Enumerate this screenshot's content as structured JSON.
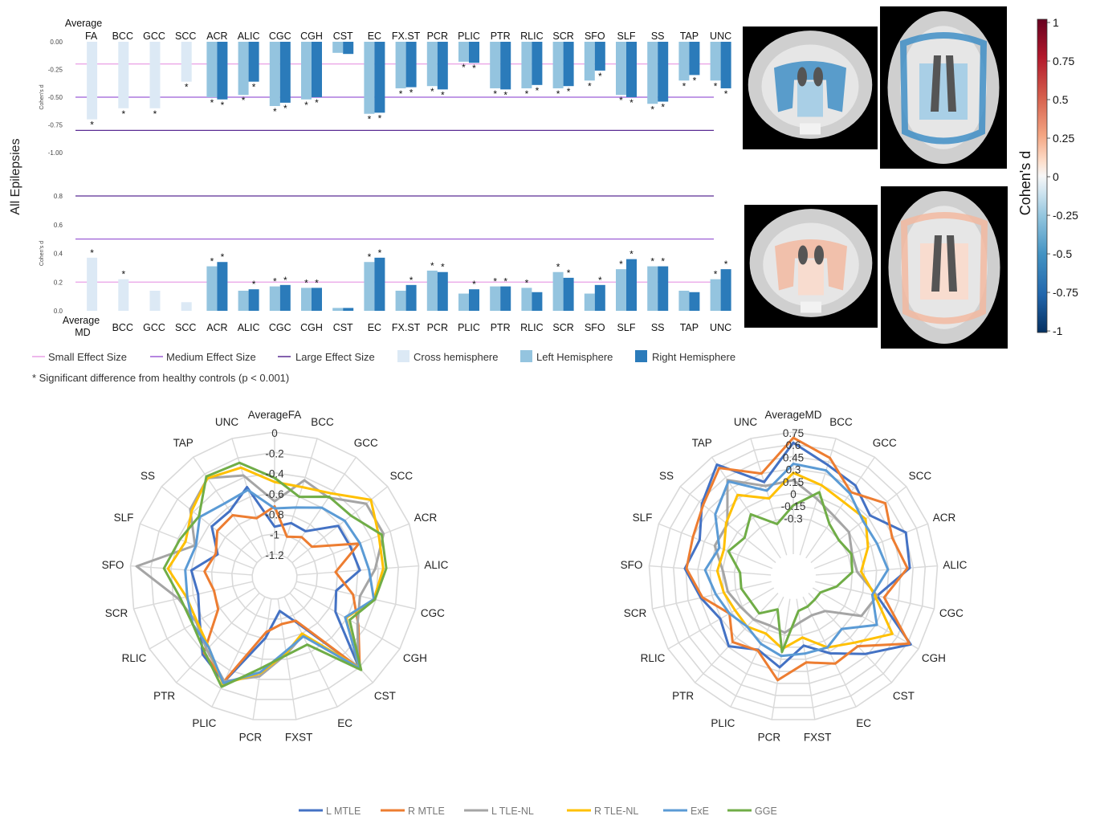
{
  "figure": {
    "row_label": "All Epilepsies",
    "footnote": "* Significant difference from healthy controls (p < 0.001)",
    "colorbar": {
      "label": "Cohen's d",
      "ticks": [
        "1",
        "0.75",
        "0.5",
        "0.25",
        "0",
        "-0.25",
        "-0.5",
        "-0.75",
        "-1"
      ]
    },
    "legend": {
      "small": "Small Effect Size",
      "medium": "Medium Effect Size",
      "large": "Large Effect Size",
      "cross": "Cross hemisphere",
      "left": "Left Hemisphere",
      "right": "Right Hemisphere"
    },
    "colors": {
      "cross": "#dce9f5",
      "left": "#94c4df",
      "right": "#2b7bba",
      "small": "#e9a0e6",
      "medium": "#9c5ed6",
      "large": "#5b2c93"
    }
  },
  "chart_data": [
    {
      "type": "bar",
      "title": "",
      "ylabel": "Cohen's d",
      "first_category_label": [
        "Average",
        "FA"
      ],
      "categories": [
        "FA",
        "BCC",
        "GCC",
        "SCC",
        "ACR",
        "ALIC",
        "CGC",
        "CGH",
        "CST",
        "EC",
        "FX.ST",
        "PCR",
        "PLIC",
        "PTR",
        "RLIC",
        "SCR",
        "SFO",
        "SLF",
        "SS",
        "TAP",
        "UNC"
      ],
      "yticks": [
        "0.00",
        "-0.25",
        "-0.50",
        "-0.75",
        "-1.00"
      ],
      "ylim": [
        -1.0,
        0.0
      ],
      "thresholds": {
        "small": -0.2,
        "medium": -0.5,
        "large": -0.8
      },
      "cross_values": [
        -0.7,
        -0.6,
        -0.6,
        -0.36,
        null,
        null,
        null,
        null,
        null,
        null,
        null,
        null,
        null,
        null,
        null,
        null,
        null,
        null,
        null,
        null,
        null
      ],
      "left_values": [
        null,
        null,
        null,
        null,
        -0.5,
        -0.48,
        -0.58,
        -0.52,
        -0.1,
        -0.65,
        -0.42,
        -0.4,
        -0.18,
        -0.42,
        -0.42,
        -0.42,
        -0.35,
        -0.48,
        -0.56,
        -0.35,
        -0.35
      ],
      "right_values": [
        null,
        null,
        null,
        null,
        -0.52,
        -0.36,
        -0.55,
        -0.5,
        -0.11,
        -0.64,
        -0.41,
        -0.43,
        -0.19,
        -0.43,
        -0.39,
        -0.4,
        -0.26,
        -0.5,
        -0.54,
        -0.3,
        -0.42
      ],
      "sig_cross": [
        true,
        true,
        true,
        true,
        false,
        false,
        false,
        false,
        false,
        false,
        false,
        false,
        false,
        false,
        false,
        false,
        false,
        false,
        false,
        false,
        false
      ],
      "sig_left": [
        false,
        false,
        false,
        false,
        true,
        true,
        true,
        true,
        false,
        true,
        true,
        true,
        true,
        true,
        true,
        true,
        true,
        true,
        true,
        true,
        true
      ],
      "sig_right": [
        false,
        false,
        false,
        false,
        true,
        true,
        true,
        true,
        false,
        true,
        true,
        true,
        true,
        true,
        true,
        true,
        true,
        true,
        true,
        true,
        true
      ]
    },
    {
      "type": "bar",
      "title": "",
      "ylabel": "Cohen's d",
      "first_category_label": [
        "Average",
        "MD"
      ],
      "categories": [
        "MD",
        "BCC",
        "GCC",
        "SCC",
        "ACR",
        "ALIC",
        "CGC",
        "CGH",
        "CST",
        "EC",
        "FX.ST",
        "PCR",
        "PLIC",
        "PTR",
        "RLIC",
        "SCR",
        "SFO",
        "SLF",
        "SS",
        "TAP",
        "UNC"
      ],
      "yticks": [
        "0.0",
        "0.2",
        "0.4",
        "0.6",
        "0.8"
      ],
      "ylim": [
        0.0,
        0.8
      ],
      "thresholds": {
        "small": 0.2,
        "medium": 0.5,
        "large": 0.8
      },
      "cross_values": [
        0.37,
        0.22,
        0.14,
        0.06,
        null,
        null,
        null,
        null,
        null,
        null,
        null,
        null,
        null,
        null,
        null,
        null,
        null,
        null,
        null,
        null,
        null
      ],
      "left_values": [
        null,
        null,
        null,
        null,
        0.31,
        0.14,
        0.17,
        0.16,
        0.02,
        0.34,
        0.14,
        0.28,
        0.12,
        0.17,
        0.16,
        0.27,
        0.12,
        0.29,
        0.31,
        0.14,
        0.22
      ],
      "right_values": [
        null,
        null,
        null,
        null,
        0.34,
        0.15,
        0.18,
        0.16,
        0.02,
        0.37,
        0.18,
        0.27,
        0.15,
        0.17,
        0.13,
        0.23,
        0.18,
        0.36,
        0.31,
        0.13,
        0.29
      ],
      "sig_cross": [
        true,
        true,
        false,
        false,
        false,
        false,
        false,
        false,
        false,
        false,
        false,
        false,
        false,
        false,
        false,
        false,
        false,
        false,
        false,
        false,
        false
      ],
      "sig_left": [
        false,
        false,
        false,
        false,
        true,
        false,
        true,
        true,
        false,
        true,
        false,
        true,
        false,
        true,
        true,
        true,
        false,
        true,
        true,
        false,
        true
      ],
      "sig_right": [
        false,
        false,
        false,
        false,
        true,
        true,
        true,
        true,
        false,
        true,
        true,
        true,
        true,
        true,
        false,
        true,
        true,
        true,
        true,
        false,
        true
      ]
    },
    {
      "type": "radar",
      "axes": [
        "AverageFA",
        "BCC",
        "GCC",
        "SCC",
        "ACR",
        "ALIC",
        "CGC",
        "CGH",
        "CST",
        "EC",
        "FXST",
        "PCR",
        "PLIC",
        "PTR",
        "RLIC",
        "SCR",
        "SFO",
        "SLF",
        "SS",
        "TAP",
        "UNC"
      ],
      "rticks": [
        "0",
        "-0.2",
        "-0.4",
        "-0.6",
        "-0.8",
        "-1",
        "-1.2"
      ],
      "rlim": [
        -1.2,
        0.0
      ],
      "series": [
        {
          "name": "L MTLE",
          "color": "#4472c4",
          "values": [
            -0.93,
            -0.87,
            -0.88,
            -0.62,
            -0.62,
            -0.58,
            -0.8,
            -0.73,
            -0.2,
            -0.92,
            -1.08,
            -0.81,
            -0.27,
            -0.38,
            -0.57,
            -0.65,
            -0.6,
            -0.82,
            -0.63,
            -0.64,
            -0.5
          ]
        },
        {
          "name": "R MTLE",
          "color": "#ed7d31",
          "values": [
            -0.73,
            -1.01,
            -0.95,
            -0.95,
            -0.53,
            -0.82,
            -0.63,
            -0.47,
            -0.19,
            -0.94,
            -0.95,
            -0.87,
            -0.28,
            -0.4,
            -0.78,
            -0.81,
            -0.73,
            -0.8,
            -0.7,
            -0.69,
            -0.82
          ]
        },
        {
          "name": "L TLE-NL",
          "color": "#a5a5a5",
          "values": [
            -0.68,
            -0.43,
            -0.48,
            -0.27,
            -0.27,
            -0.43,
            -0.56,
            -0.48,
            -0.21,
            -0.78,
            -0.65,
            -0.43,
            -0.28,
            -0.44,
            -0.53,
            -0.45,
            -0.06,
            -0.58,
            -0.36,
            -0.25,
            -0.38
          ]
        },
        {
          "name": "R TLE-NL",
          "color": "#ffc000",
          "values": [
            -0.49,
            -0.5,
            -0.43,
            -0.21,
            -0.32,
            -0.35,
            -0.42,
            -0.61,
            -0.2,
            -0.8,
            -0.66,
            -0.46,
            -0.25,
            -0.47,
            -0.54,
            -0.53,
            -0.37,
            -0.48,
            -0.38,
            -0.25,
            -0.3
          ]
        },
        {
          "name": "ExE",
          "color": "#5b9bd5",
          "values": [
            -0.75,
            -0.71,
            -0.6,
            -0.54,
            -0.52,
            -0.49,
            -0.42,
            -0.62,
            -0.19,
            -0.77,
            -0.68,
            -0.47,
            -0.26,
            -0.47,
            -0.49,
            -0.54,
            -0.54,
            -0.59,
            -0.48,
            -0.55,
            -0.53
          ]
        },
        {
          "name": "GGE",
          "color": "#70ad47",
          "values": [
            -0.45,
            -0.6,
            -0.47,
            -0.46,
            -0.29,
            -0.32,
            -0.41,
            -0.57,
            -0.17,
            -0.68,
            -0.64,
            -0.51,
            -0.22,
            -0.41,
            -0.49,
            -0.47,
            -0.33,
            -0.42,
            -0.47,
            -0.23,
            -0.25
          ]
        }
      ]
    },
    {
      "type": "radar",
      "axes": [
        "AverageMD",
        "BCC",
        "GCC",
        "SCC",
        "ACR",
        "ALIC",
        "CGC",
        "CGH",
        "CST",
        "EC",
        "FXST",
        "PCR",
        "PLIC",
        "PTR",
        "RLIC",
        "SCR",
        "SFO",
        "SLF",
        "SS",
        "TAP",
        "UNC"
      ],
      "rticks": [
        "0.75",
        "0.6",
        "0.45",
        "0.3",
        "0.15",
        "0",
        "-0.15",
        "-0.3"
      ],
      "rlim": [
        -0.75,
        0.75
      ],
      "series": [
        {
          "name": "L MTLE",
          "color": "#4472c4",
          "values": [
            0.62,
            0.41,
            0.33,
            0.18,
            0.46,
            0.41,
            0.03,
            0.64,
            0.27,
            0.02,
            -0.17,
            0.1,
            -0.03,
            0.14,
            0.01,
            0.14,
            0.31,
            0.21,
            0.41,
            0.64,
            0.19
          ]
        },
        {
          "name": "R MTLE",
          "color": "#ed7d31",
          "values": [
            0.68,
            0.5,
            0.23,
            0.42,
            0.28,
            0.38,
            0.12,
            0.62,
            0.14,
            0.16,
            0.04,
            0.26,
            -0.02,
            0.07,
            -0.12,
            0.12,
            0.29,
            0.3,
            0.39,
            0.59,
            0.3
          ]
        },
        {
          "name": "L TLE-NL",
          "color": "#a5a5a5",
          "values": [
            0.16,
            -0.03,
            -0.13,
            -0.15,
            -0.25,
            -0.24,
            0.03,
            -0.06,
            -0.45,
            -0.5,
            -0.46,
            -0.33,
            -0.36,
            -0.31,
            -0.28,
            -0.2,
            -0.16,
            0.01,
            0.01,
            0.41,
            0.14
          ]
        },
        {
          "name": "R TLE-NL",
          "color": "#ffc000",
          "values": [
            0.25,
            0.15,
            0.08,
            0.11,
            -0.04,
            -0.19,
            0.0,
            0.38,
            0.08,
            -0.06,
            -0.27,
            -0.13,
            -0.25,
            -0.19,
            -0.2,
            -0.15,
            -0.09,
            -0.11,
            0.03,
            0.19,
            -0.02
          ]
        },
        {
          "name": "ExE",
          "color": "#5b9bd5",
          "values": [
            0.36,
            0.34,
            0.21,
            0.07,
            0.08,
            0.14,
            -0.03,
            0.16,
            -0.15,
            -0.06,
            -0.07,
            -0.04,
            -0.11,
            -0.19,
            -0.12,
            -0.05,
            0.06,
            -0.05,
            0.2,
            0.39,
            0.08
          ]
        },
        {
          "name": "GGE",
          "color": "#70ad47",
          "values": [
            -0.15,
            0.06,
            -0.24,
            -0.31,
            -0.26,
            -0.3,
            -0.48,
            -0.64,
            -0.64,
            -0.62,
            -0.6,
            -0.09,
            -0.58,
            -0.41,
            -0.42,
            -0.37,
            -0.37,
            -0.17,
            -0.26,
            -0.1,
            -0.35
          ]
        }
      ]
    }
  ]
}
